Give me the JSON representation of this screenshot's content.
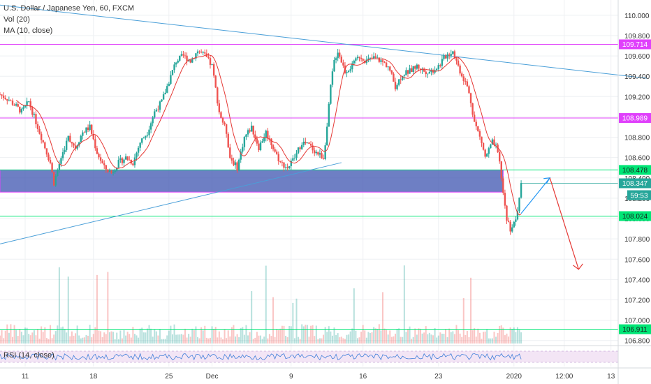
{
  "legend": {
    "title": "U.S. Dollar / Japanese Yen, 60, FXCM",
    "vol": "Vol (20)",
    "ma": "MA (10, close)"
  },
  "rsi": {
    "label": "RSI (14, close)"
  },
  "colors": {
    "bull": "#26a69a",
    "bear": "#ef5350",
    "ma": "#e53935",
    "trend": "#4a9fd8",
    "magenta": "#e040fb",
    "green": "#00e676",
    "zone": "#4a5fb5",
    "rsi": "#3f7fd9",
    "rsi_band": "#f3e5f5",
    "projection_up": "#2196f3",
    "projection_down": "#e53935"
  },
  "chart_data": {
    "type": "candlestick",
    "symbol": "USDJPY",
    "timeframe": "60",
    "ylim": [
      106.75,
      110.15
    ],
    "y_ticks": [
      "110.000",
      "109.800",
      "109.600",
      "109.400",
      "109.200",
      "109.000",
      "108.800",
      "108.600",
      "108.400",
      "108.200",
      "108.000",
      "107.800",
      "107.600",
      "107.400",
      "107.200",
      "107.000",
      "106.800"
    ],
    "x_ticks": [
      "11",
      "18",
      "25",
      "Dec",
      "9",
      "16",
      "23",
      "2020",
      "12:00",
      "13"
    ],
    "horizontal_levels": [
      {
        "label": "109.714",
        "value": 109.714,
        "color": "magenta"
      },
      {
        "label": "108.989",
        "value": 108.989,
        "color": "magenta"
      },
      {
        "label": "108.478",
        "value": 108.478,
        "color": "green"
      },
      {
        "label": "108.024",
        "value": 108.024,
        "color": "green"
      },
      {
        "label": "106.911",
        "value": 106.911,
        "color": "green"
      }
    ],
    "current_price": {
      "label": "108.347",
      "value": 108.347,
      "countdown": "59:53"
    },
    "zone": {
      "top": 108.478,
      "bottom": 108.26
    },
    "close_path": [
      [
        0,
        109.22
      ],
      [
        2,
        109.18
      ],
      [
        4,
        109.12
      ],
      [
        6,
        109.05
      ],
      [
        8,
        109.15
      ],
      [
        10,
        108.95
      ],
      [
        12,
        108.75
      ],
      [
        14,
        108.55
      ],
      [
        15,
        108.35
      ],
      [
        17,
        108.6
      ],
      [
        19,
        108.8
      ],
      [
        21,
        108.7
      ],
      [
        23,
        108.85
      ],
      [
        25,
        108.9
      ],
      [
        27,
        108.65
      ],
      [
        29,
        108.5
      ],
      [
        31,
        108.45
      ],
      [
        33,
        108.55
      ],
      [
        35,
        108.6
      ],
      [
        37,
        108.55
      ],
      [
        39,
        108.75
      ],
      [
        41,
        108.85
      ],
      [
        43,
        109.05
      ],
      [
        45,
        109.15
      ],
      [
        47,
        109.35
      ],
      [
        49,
        109.55
      ],
      [
        51,
        109.6
      ],
      [
        53,
        109.55
      ],
      [
        55,
        109.65
      ],
      [
        57,
        109.6
      ],
      [
        59,
        109.5
      ],
      [
        61,
        109.05
      ],
      [
        63,
        108.85
      ],
      [
        64,
        108.6
      ],
      [
        66,
        108.5
      ],
      [
        68,
        108.8
      ],
      [
        70,
        108.9
      ],
      [
        72,
        108.7
      ],
      [
        74,
        108.85
      ],
      [
        76,
        108.7
      ],
      [
        78,
        108.55
      ],
      [
        80,
        108.5
      ],
      [
        82,
        108.6
      ],
      [
        84,
        108.75
      ],
      [
        86,
        108.72
      ],
      [
        88,
        108.65
      ],
      [
        90,
        108.6
      ],
      [
        91,
        108.9
      ],
      [
        92,
        109.3
      ],
      [
        93,
        109.55
      ],
      [
        94,
        109.65
      ],
      [
        96,
        109.45
      ],
      [
        98,
        109.5
      ],
      [
        100,
        109.6
      ],
      [
        102,
        109.55
      ],
      [
        104,
        109.58
      ],
      [
        106,
        109.55
      ],
      [
        108,
        109.5
      ],
      [
        110,
        109.3
      ],
      [
        112,
        109.42
      ],
      [
        114,
        109.45
      ],
      [
        116,
        109.5
      ],
      [
        118,
        109.45
      ],
      [
        120,
        109.45
      ],
      [
        122,
        109.5
      ],
      [
        124,
        109.6
      ],
      [
        126,
        109.65
      ],
      [
        128,
        109.45
      ],
      [
        130,
        109.3
      ],
      [
        131,
        109.15
      ],
      [
        132,
        108.95
      ],
      [
        134,
        108.75
      ],
      [
        135,
        108.6
      ],
      [
        137,
        108.75
      ],
      [
        138,
        108.7
      ],
      [
        139,
        108.55
      ],
      [
        140,
        108.25
      ],
      [
        141,
        108.0
      ],
      [
        142,
        107.9
      ],
      [
        143,
        107.95
      ],
      [
        144,
        108.05
      ],
      [
        145,
        108.35
      ]
    ],
    "projection": [
      [
        145,
        108.05
      ],
      [
        153,
        108.4
      ],
      [
        161,
        107.5
      ]
    ],
    "x_range": [
      0,
      172
    ],
    "tick_positions": {
      "11": 7,
      "18": 26,
      "25": 47,
      "Dec": 59,
      "9": 81,
      "16": 101,
      "23": 122,
      "2020": 143,
      "12:00": 157,
      "13": 170
    },
    "trendlines": [
      {
        "from": [
          0,
          110.1
        ],
        "to": [
          180,
          109.38
        ]
      },
      {
        "from": [
          0,
          107.75
        ],
        "to": [
          95,
          108.55
        ]
      }
    ],
    "legend_text": [
      "U.S. Dollar / Japanese Yen, 60, FXCM",
      "Vol (20)",
      "MA (10, close)"
    ],
    "rsi_series": "RSI (14, close)"
  }
}
